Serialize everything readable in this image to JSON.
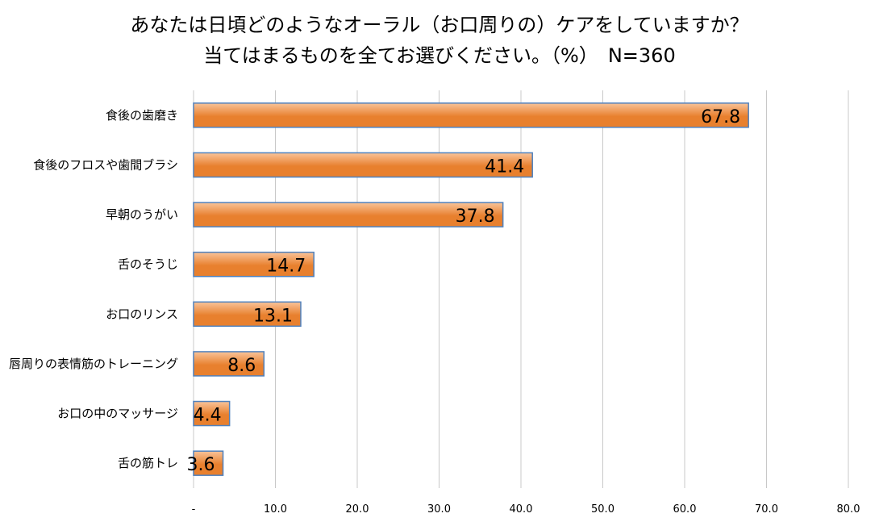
{
  "chart_data": {
    "type": "bar",
    "orientation": "horizontal",
    "title_lines": [
      "あなたは日頃どのようなオーラル（お口周りの）ケアをしていますか？",
      "当てはまるものを全てお選びください。（%）　N=360"
    ],
    "categories": [
      "食後の歯磨き",
      "食後のフロスや歯間ブラシ",
      "早朝のうがい",
      "舌のそうじ",
      "お口のリンス",
      "唇周りの表情筋のトレーニング",
      "お口の中のマッサージ",
      "舌の筋トレ"
    ],
    "values": [
      67.8,
      41.4,
      37.8,
      14.7,
      13.1,
      8.6,
      4.4,
      3.6
    ],
    "value_labels": [
      "67.8",
      "41.4",
      "37.8",
      "14.7",
      "13.1",
      "8.6",
      "4.4",
      "3.6"
    ],
    "xlim": [
      0,
      80
    ],
    "x_ticks": [
      0,
      10,
      20,
      30,
      40,
      50,
      60,
      70,
      80
    ],
    "x_tick_labels": [
      "-",
      "10.0",
      "20.0",
      "30.0",
      "40.0",
      "50.0",
      "60.0",
      "70.0",
      "80.0"
    ],
    "grid": true,
    "legend": "none",
    "colors": {
      "bar_light": "#f9c49a",
      "bar_dark": "#e8802e",
      "bar_border": "#4f81bd",
      "grid": "#c8c8c8"
    }
  }
}
